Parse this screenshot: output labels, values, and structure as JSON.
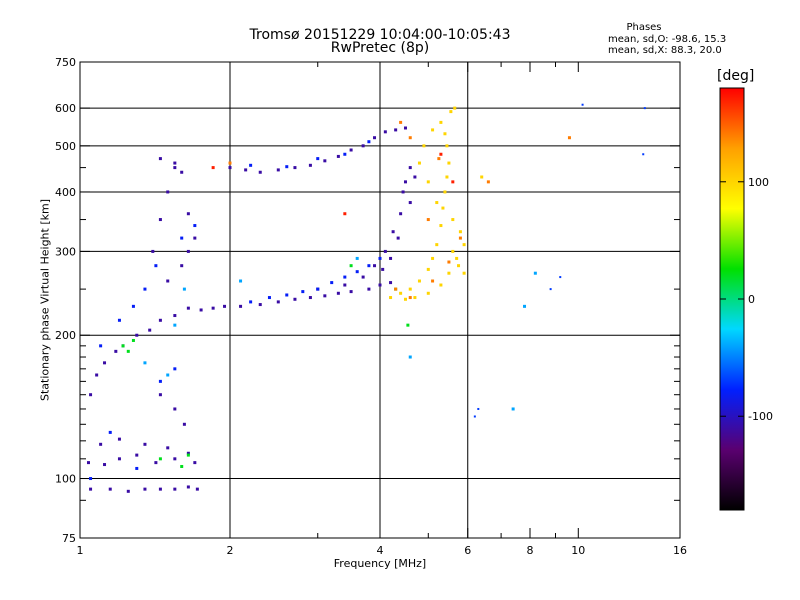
{
  "chart_data": {
    "type": "scatter",
    "title": "Tromsø 20151229 10:04:00-10:05:43",
    "subtitle": "RwPretec (8p)",
    "stats": {
      "heading": "Phases",
      "o_mode": "mean, sd,O: -98.6, 15.3",
      "x_mode": "mean, sd,X:  88.3, 20.0"
    },
    "xlabel": "Frequency [MHz]",
    "ylabel": "Stationary phase Virtual Height [km]",
    "x_scale": "log",
    "y_scale": "log",
    "xlim": [
      1,
      16
    ],
    "ylim": [
      75,
      750
    ],
    "x_ticks": [
      1,
      2,
      4,
      6,
      8,
      10,
      16
    ],
    "x_gridlines": [
      1,
      2,
      4,
      6,
      16
    ],
    "x_minor_ticks": [
      3,
      5,
      7,
      9
    ],
    "y_ticks": [
      75,
      100,
      200,
      300,
      400,
      500,
      600,
      750
    ],
    "y_gridlines": [
      100,
      200,
      300,
      400,
      500,
      600
    ],
    "y_minor_ticks": [
      90,
      110,
      120,
      130,
      140,
      150,
      160,
      170,
      180,
      190,
      250,
      350,
      450
    ],
    "grid": true,
    "colorbar": {
      "label": "[deg]",
      "range": [
        -180,
        180
      ],
      "ticks": [
        100,
        0,
        -100
      ],
      "colors": [
        "#000000",
        "#5a0070",
        "#0020ff",
        "#00d8ff",
        "#00e000",
        "#ffff00",
        "#ffa000",
        "#ff0000"
      ]
    },
    "series": [
      {
        "phase": -110,
        "points": [
          [
            1.05,
            95
          ],
          [
            1.15,
            95
          ],
          [
            1.25,
            94
          ],
          [
            1.35,
            95
          ],
          [
            1.45,
            95
          ],
          [
            1.55,
            95
          ],
          [
            1.65,
            96
          ],
          [
            1.72,
            95
          ],
          [
            1.04,
            108
          ],
          [
            1.12,
            107
          ],
          [
            1.2,
            110
          ],
          [
            1.3,
            112
          ],
          [
            1.42,
            108
          ],
          [
            1.55,
            110
          ],
          [
            1.65,
            113
          ],
          [
            1.7,
            108
          ],
          [
            1.1,
            118
          ],
          [
            1.2,
            121
          ],
          [
            1.35,
            118
          ],
          [
            1.5,
            116
          ],
          [
            1.05,
            150
          ],
          [
            1.08,
            165
          ],
          [
            1.12,
            175
          ],
          [
            1.18,
            185
          ],
          [
            1.22,
            190
          ],
          [
            1.3,
            200
          ],
          [
            1.38,
            205
          ],
          [
            1.45,
            215
          ],
          [
            1.55,
            220
          ],
          [
            1.65,
            228
          ],
          [
            1.75,
            226
          ],
          [
            1.85,
            228
          ],
          [
            1.95,
            230
          ],
          [
            2.1,
            230
          ],
          [
            2.3,
            232
          ],
          [
            2.5,
            235
          ],
          [
            2.7,
            238
          ],
          [
            2.9,
            240
          ],
          [
            3.1,
            242
          ],
          [
            3.3,
            245
          ],
          [
            3.5,
            247
          ],
          [
            3.8,
            250
          ],
          [
            4.0,
            255
          ],
          [
            4.2,
            258
          ],
          [
            1.4,
            300
          ],
          [
            1.45,
            350
          ],
          [
            1.5,
            400
          ],
          [
            1.55,
            450
          ],
          [
            1.45,
            470
          ],
          [
            1.55,
            460
          ],
          [
            1.6,
            440
          ],
          [
            1.5,
            260
          ],
          [
            1.6,
            280
          ],
          [
            1.65,
            300
          ],
          [
            1.7,
            320
          ],
          [
            1.65,
            360
          ],
          [
            2.0,
            450
          ],
          [
            2.15,
            445
          ],
          [
            2.3,
            440
          ],
          [
            2.5,
            445
          ],
          [
            2.7,
            450
          ],
          [
            2.9,
            455
          ],
          [
            3.1,
            465
          ],
          [
            3.3,
            475
          ],
          [
            3.5,
            490
          ],
          [
            3.7,
            500
          ],
          [
            3.9,
            520
          ],
          [
            4.1,
            535
          ],
          [
            4.3,
            540
          ],
          [
            4.5,
            545
          ],
          [
            3.9,
            280
          ],
          [
            4.1,
            300
          ],
          [
            4.25,
            330
          ],
          [
            4.4,
            360
          ],
          [
            4.45,
            400
          ],
          [
            4.5,
            420
          ],
          [
            4.6,
            450
          ],
          [
            4.7,
            430
          ],
          [
            4.6,
            380
          ],
          [
            4.35,
            320
          ],
          [
            4.2,
            290
          ],
          [
            4.05,
            275
          ],
          [
            3.7,
            265
          ],
          [
            3.4,
            255
          ],
          [
            3.0,
            250
          ],
          [
            1.55,
            140
          ],
          [
            1.45,
            150
          ],
          [
            1.62,
            130
          ]
        ]
      },
      {
        "phase": -80,
        "points": [
          [
            1.1,
            190
          ],
          [
            1.2,
            215
          ],
          [
            1.28,
            230
          ],
          [
            1.35,
            250
          ],
          [
            1.42,
            280
          ],
          [
            1.6,
            320
          ],
          [
            1.7,
            340
          ],
          [
            2.2,
            235
          ],
          [
            2.4,
            240
          ],
          [
            2.6,
            243
          ],
          [
            2.8,
            247
          ],
          [
            3.0,
            250
          ],
          [
            3.2,
            258
          ],
          [
            3.4,
            265
          ],
          [
            3.6,
            272
          ],
          [
            3.8,
            280
          ],
          [
            4.0,
            290
          ],
          [
            2.2,
            455
          ],
          [
            2.6,
            452
          ],
          [
            3.0,
            470
          ],
          [
            3.4,
            480
          ],
          [
            3.8,
            510
          ],
          [
            1.55,
            170
          ],
          [
            1.45,
            160
          ],
          [
            1.15,
            125
          ],
          [
            1.3,
            105
          ],
          [
            1.05,
            100
          ]
        ]
      },
      {
        "phase": -40,
        "points": [
          [
            1.35,
            175
          ],
          [
            1.5,
            165
          ],
          [
            1.55,
            210
          ],
          [
            1.62,
            250
          ],
          [
            2.1,
            260
          ],
          [
            3.6,
            290
          ],
          [
            4.6,
            180
          ],
          [
            7.4,
            140
          ],
          [
            7.8,
            230
          ],
          [
            8.2,
            270
          ]
        ]
      },
      {
        "phase": 20,
        "points": [
          [
            1.22,
            190
          ],
          [
            1.28,
            195
          ],
          [
            1.25,
            185
          ],
          [
            1.45,
            110
          ],
          [
            1.65,
            112
          ],
          [
            1.6,
            106
          ],
          [
            3.5,
            280
          ],
          [
            4.3,
            250
          ],
          [
            4.55,
            210
          ]
        ]
      },
      {
        "phase": 100,
        "points": [
          [
            4.4,
            245
          ],
          [
            4.6,
            250
          ],
          [
            4.8,
            260
          ],
          [
            5.0,
            275
          ],
          [
            5.1,
            290
          ],
          [
            5.2,
            310
          ],
          [
            5.3,
            340
          ],
          [
            5.35,
            370
          ],
          [
            5.4,
            400
          ],
          [
            5.45,
            430
          ],
          [
            5.5,
            460
          ],
          [
            5.45,
            500
          ],
          [
            5.4,
            530
          ],
          [
            5.3,
            560
          ],
          [
            5.1,
            540
          ],
          [
            4.9,
            500
          ],
          [
            4.8,
            460
          ],
          [
            5.0,
            420
          ],
          [
            5.2,
            380
          ],
          [
            5.6,
            350
          ],
          [
            5.8,
            330
          ],
          [
            5.9,
            310
          ],
          [
            5.7,
            290
          ],
          [
            5.5,
            270
          ],
          [
            5.3,
            255
          ],
          [
            5.0,
            245
          ],
          [
            4.7,
            240
          ],
          [
            4.5,
            238
          ],
          [
            4.2,
            240
          ],
          [
            5.6,
            300
          ],
          [
            5.75,
            280
          ],
          [
            5.9,
            270
          ],
          [
            5.55,
            590
          ],
          [
            5.65,
            600
          ],
          [
            6.4,
            430
          ]
        ]
      },
      {
        "phase": 140,
        "points": [
          [
            4.3,
            250
          ],
          [
            4.6,
            240
          ],
          [
            5.1,
            260
          ],
          [
            5.5,
            285
          ],
          [
            5.8,
            320
          ],
          [
            4.6,
            520
          ],
          [
            4.4,
            560
          ],
          [
            5.25,
            470
          ],
          [
            5.0,
            350
          ],
          [
            2.0,
            460
          ],
          [
            9.6,
            520
          ],
          [
            6.6,
            420
          ]
        ]
      },
      {
        "phase": 170,
        "points": [
          [
            5.3,
            480
          ],
          [
            5.6,
            420
          ],
          [
            3.4,
            360
          ],
          [
            1.85,
            450
          ]
        ]
      }
    ],
    "outliers": [
      [
        6.2,
        135
      ],
      [
        9.2,
        265
      ],
      [
        10.2,
        610
      ],
      [
        13.5,
        480
      ],
      [
        13.6,
        600
      ],
      [
        6.3,
        140
      ],
      [
        8.8,
        250
      ]
    ]
  }
}
